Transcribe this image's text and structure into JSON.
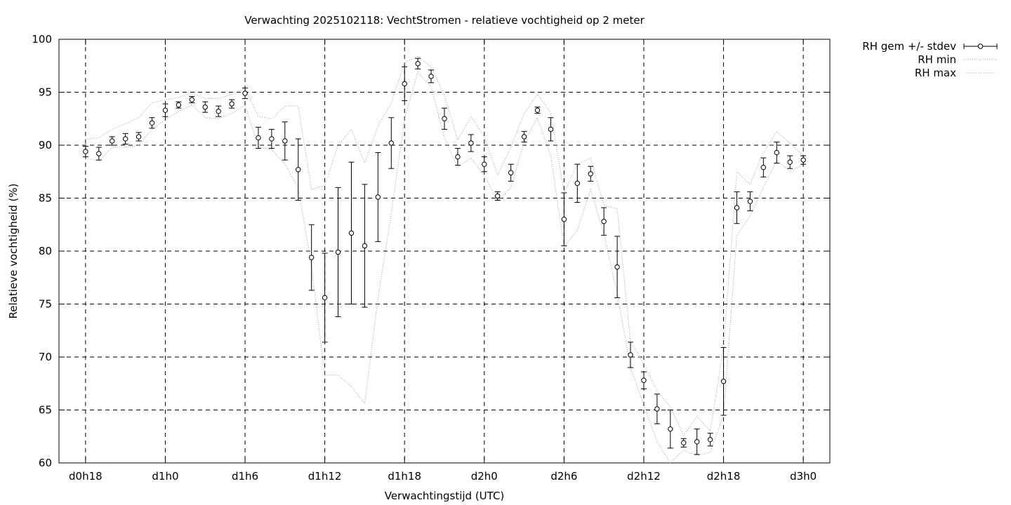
{
  "chart_data": {
    "type": "line",
    "title": "Verwachting 2025102118: VechtStromen - relatieve vochtigheid op 2 meter",
    "xlabel": "Verwachtingstijd (UTC)",
    "ylabel": "Relatieve vochtigheid (%)",
    "ylim": [
      60,
      100
    ],
    "xlim_hours": [
      -2,
      56
    ],
    "grid": true,
    "legend_position": "outside top-right",
    "x_ticks": [
      {
        "hour": 0,
        "label": "d0h18"
      },
      {
        "hour": 6,
        "label": "d1h0"
      },
      {
        "hour": 12,
        "label": "d1h6"
      },
      {
        "hour": 18,
        "label": "d1h12"
      },
      {
        "hour": 24,
        "label": "d1h18"
      },
      {
        "hour": 30,
        "label": "d2h0"
      },
      {
        "hour": 36,
        "label": "d2h6"
      },
      {
        "hour": 42,
        "label": "d2h12"
      },
      {
        "hour": 48,
        "label": "d2h18"
      },
      {
        "hour": 54,
        "label": "d3h0"
      }
    ],
    "y_ticks": [
      60,
      65,
      70,
      75,
      80,
      85,
      90,
      95,
      100
    ],
    "legend": [
      "RH gem +/- stdev",
      "RH min",
      "RH max"
    ],
    "x_hours": [
      0,
      1,
      2,
      3,
      4,
      5,
      6,
      7,
      8,
      9,
      10,
      11,
      12,
      13,
      14,
      15,
      16,
      17,
      18,
      19,
      20,
      21,
      22,
      23,
      24,
      25,
      26,
      27,
      28,
      29,
      30,
      31,
      32,
      33,
      34,
      35,
      36,
      37,
      38,
      39,
      40,
      41,
      42,
      43,
      44,
      45,
      46,
      47,
      48,
      49,
      50,
      51,
      52,
      53,
      54
    ],
    "mean": [
      89.4,
      89.2,
      90.4,
      90.6,
      90.8,
      92.1,
      93.3,
      93.8,
      94.3,
      93.6,
      93.2,
      93.9,
      94.9,
      90.7,
      90.6,
      90.4,
      87.7,
      79.4,
      75.6,
      79.9,
      81.7,
      80.5,
      85.1,
      90.2,
      95.8,
      97.7,
      96.5,
      92.5,
      88.9,
      90.2,
      88.2,
      85.2,
      87.4,
      90.8,
      93.3,
      91.5,
      83.0,
      86.4,
      87.3,
      82.8,
      78.5,
      70.2,
      67.8,
      65.1,
      63.2,
      61.9,
      62.0,
      62.2,
      67.7,
      84.1,
      84.7,
      87.9,
      89.3,
      88.4,
      88.6
    ],
    "stdev": [
      0.5,
      0.6,
      0.4,
      0.5,
      0.4,
      0.5,
      0.6,
      0.3,
      0.3,
      0.5,
      0.5,
      0.4,
      0.5,
      1.0,
      0.9,
      1.8,
      2.9,
      3.1,
      4.2,
      6.1,
      6.7,
      5.8,
      4.2,
      2.4,
      1.6,
      0.5,
      0.6,
      1.0,
      0.8,
      0.8,
      0.7,
      0.4,
      0.8,
      0.5,
      0.3,
      1.1,
      2.5,
      1.8,
      0.7,
      1.3,
      2.9,
      1.2,
      0.8,
      1.4,
      1.8,
      0.4,
      1.2,
      0.6,
      3.2,
      1.5,
      0.9,
      0.9,
      1.0,
      0.6,
      0.4
    ],
    "min": [
      88.8,
      88.5,
      89.8,
      89.8,
      90.0,
      91.5,
      92.4,
      93.2,
      93.8,
      92.6,
      92.5,
      93.0,
      93.8,
      89.8,
      89.6,
      88.2,
      86.0,
      78.5,
      68.3,
      68.3,
      67.2,
      65.6,
      75.5,
      83.6,
      92.5,
      96.9,
      95.5,
      90.7,
      87.9,
      88.8,
      87.1,
      84.7,
      86.0,
      90.3,
      92.6,
      89.0,
      80.4,
      82.0,
      85.8,
      81.6,
      76.0,
      69.0,
      65.5,
      62.0,
      60.0,
      61.2,
      60.7,
      61.0,
      64.5,
      81.5,
      83.3,
      86.0,
      88.6,
      87.5,
      88.2
    ],
    "max": [
      90.6,
      90.7,
      91.5,
      92.0,
      92.6,
      94.0,
      94.3,
      94.5,
      94.9,
      94.4,
      94.4,
      94.8,
      95.4,
      92.7,
      92.5,
      93.7,
      93.7,
      85.8,
      86.2,
      90.0,
      91.5,
      88.3,
      91.8,
      94.0,
      97.8,
      98.4,
      97.4,
      94.7,
      90.5,
      92.7,
      90.8,
      87.2,
      89.8,
      93.0,
      94.8,
      93.1,
      85.5,
      88.2,
      88.8,
      84.3,
      84.0,
      71.5,
      69.4,
      66.8,
      65.3,
      62.6,
      64.4,
      63.0,
      71.0,
      87.5,
      86.3,
      89.3,
      91.3,
      90.2,
      89.0
    ]
  }
}
